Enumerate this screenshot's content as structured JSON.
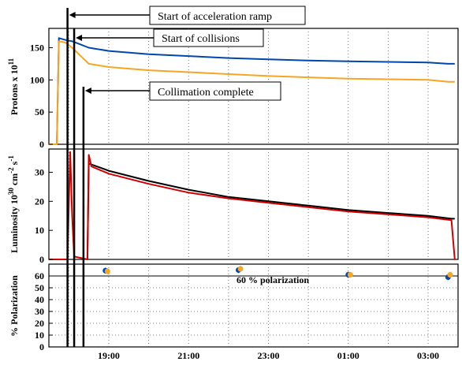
{
  "chart_data": [
    {
      "type": "line",
      "ylabel": "Protons x 10",
      "ylabel_sup": "11",
      "ylim": [
        0,
        180
      ],
      "yticks": [
        "0",
        "50",
        "100",
        "150"
      ],
      "x_start": "17:30",
      "x_end": "03:45",
      "series": [
        {
          "color": "#0047ab",
          "points": [
            [
              "17:30",
              0
            ],
            [
              "17:42",
              0
            ],
            [
              "17:45",
              165
            ],
            [
              "17:55",
              162
            ],
            [
              "18:05",
              160
            ],
            [
              "18:15",
              156
            ],
            [
              "18:30",
              150
            ],
            [
              "19:00",
              145
            ],
            [
              "20:00",
              140
            ],
            [
              "21:00",
              137
            ],
            [
              "22:00",
              134
            ],
            [
              "23:00",
              132
            ],
            [
              "00:00",
              130
            ],
            [
              "01:00",
              129
            ],
            [
              "02:00",
              128
            ],
            [
              "03:00",
              127
            ],
            [
              "03:30",
              125
            ],
            [
              "03:40",
              125
            ]
          ]
        },
        {
          "color": "#f5a623",
          "points": [
            [
              "17:30",
              0
            ],
            [
              "17:42",
              0
            ],
            [
              "17:45",
              160
            ],
            [
              "17:55",
              158
            ],
            [
              "18:05",
              150
            ],
            [
              "18:15",
              140
            ],
            [
              "18:30",
              125
            ],
            [
              "19:00",
              120
            ],
            [
              "20:00",
              115
            ],
            [
              "21:00",
              112
            ],
            [
              "22:00",
              109
            ],
            [
              "23:00",
              106
            ],
            [
              "00:00",
              104
            ],
            [
              "01:00",
              102
            ],
            [
              "02:00",
              101
            ],
            [
              "03:00",
              100
            ],
            [
              "03:30",
              97
            ],
            [
              "03:40",
              97
            ]
          ]
        }
      ]
    },
    {
      "type": "line",
      "ylabel": "Luminosity 10",
      "ylabel_sup": "30",
      "ylabel_rest": " cm",
      "ylabel_sup2": "-2",
      "ylabel_rest2": " s",
      "ylabel_sup3": "-1",
      "ylim": [
        0,
        38
      ],
      "yticks": [
        "0",
        "10",
        "20",
        "30"
      ],
      "series": [
        {
          "color": "#000000",
          "points": [
            [
              "18:28",
              0
            ],
            [
              "18:30",
              33
            ],
            [
              "19:00",
              30.5
            ],
            [
              "20:00",
              27
            ],
            [
              "21:00",
              24
            ],
            [
              "22:00",
              21.5
            ],
            [
              "23:00",
              20
            ],
            [
              "00:00",
              18.5
            ],
            [
              "01:00",
              17
            ],
            [
              "02:00",
              16
            ],
            [
              "03:00",
              15
            ],
            [
              "03:35",
              14
            ],
            [
              "03:40",
              14
            ]
          ]
        },
        {
          "color": "#d00000",
          "points": [
            [
              "17:30",
              0
            ],
            [
              "17:58",
              0
            ],
            [
              "18:02",
              37
            ],
            [
              "18:05",
              15
            ],
            [
              "18:08",
              1
            ],
            [
              "18:28",
              0
            ],
            [
              "18:30",
              36
            ],
            [
              "18:34",
              32
            ],
            [
              "19:00",
              29.5
            ],
            [
              "20:00",
              26
            ],
            [
              "21:00",
              23
            ],
            [
              "22:00",
              21
            ],
            [
              "23:00",
              19.5
            ],
            [
              "00:00",
              18
            ],
            [
              "01:00",
              16.5
            ],
            [
              "02:00",
              15.5
            ],
            [
              "03:00",
              14.5
            ],
            [
              "03:35",
              13.5
            ],
            [
              "03:40",
              0
            ]
          ]
        }
      ]
    },
    {
      "type": "scatter",
      "ylabel": "% Polarization",
      "ylim": [
        0,
        70
      ],
      "yticks": [
        "0",
        "10",
        "20",
        "30",
        "40",
        "50",
        "60"
      ],
      "reference_line": {
        "y": 60,
        "label": "60 % polarization"
      },
      "series": [
        {
          "color": "#0047ab",
          "points": [
            [
              "18:55",
              64.5,
              2.5
            ],
            [
              "22:15",
              65,
              2.5
            ],
            [
              "01:00",
              61,
              2.5
            ],
            [
              "03:30",
              59,
              2.5
            ]
          ]
        },
        {
          "color": "#f5a623",
          "points": [
            [
              "18:58",
              64,
              2.5
            ],
            [
              "22:18",
              66,
              2.5
            ],
            [
              "01:03",
              61,
              2.5
            ],
            [
              "03:33",
              61,
              2.5
            ]
          ]
        }
      ]
    }
  ],
  "x_ticks": [
    "19:00",
    "21:00",
    "23:00",
    "01:00",
    "03:00"
  ],
  "annotations": {
    "ramp": "Start of acceleration ramp",
    "collisions": "Start of collisions",
    "collimation": "Collimation complete"
  }
}
